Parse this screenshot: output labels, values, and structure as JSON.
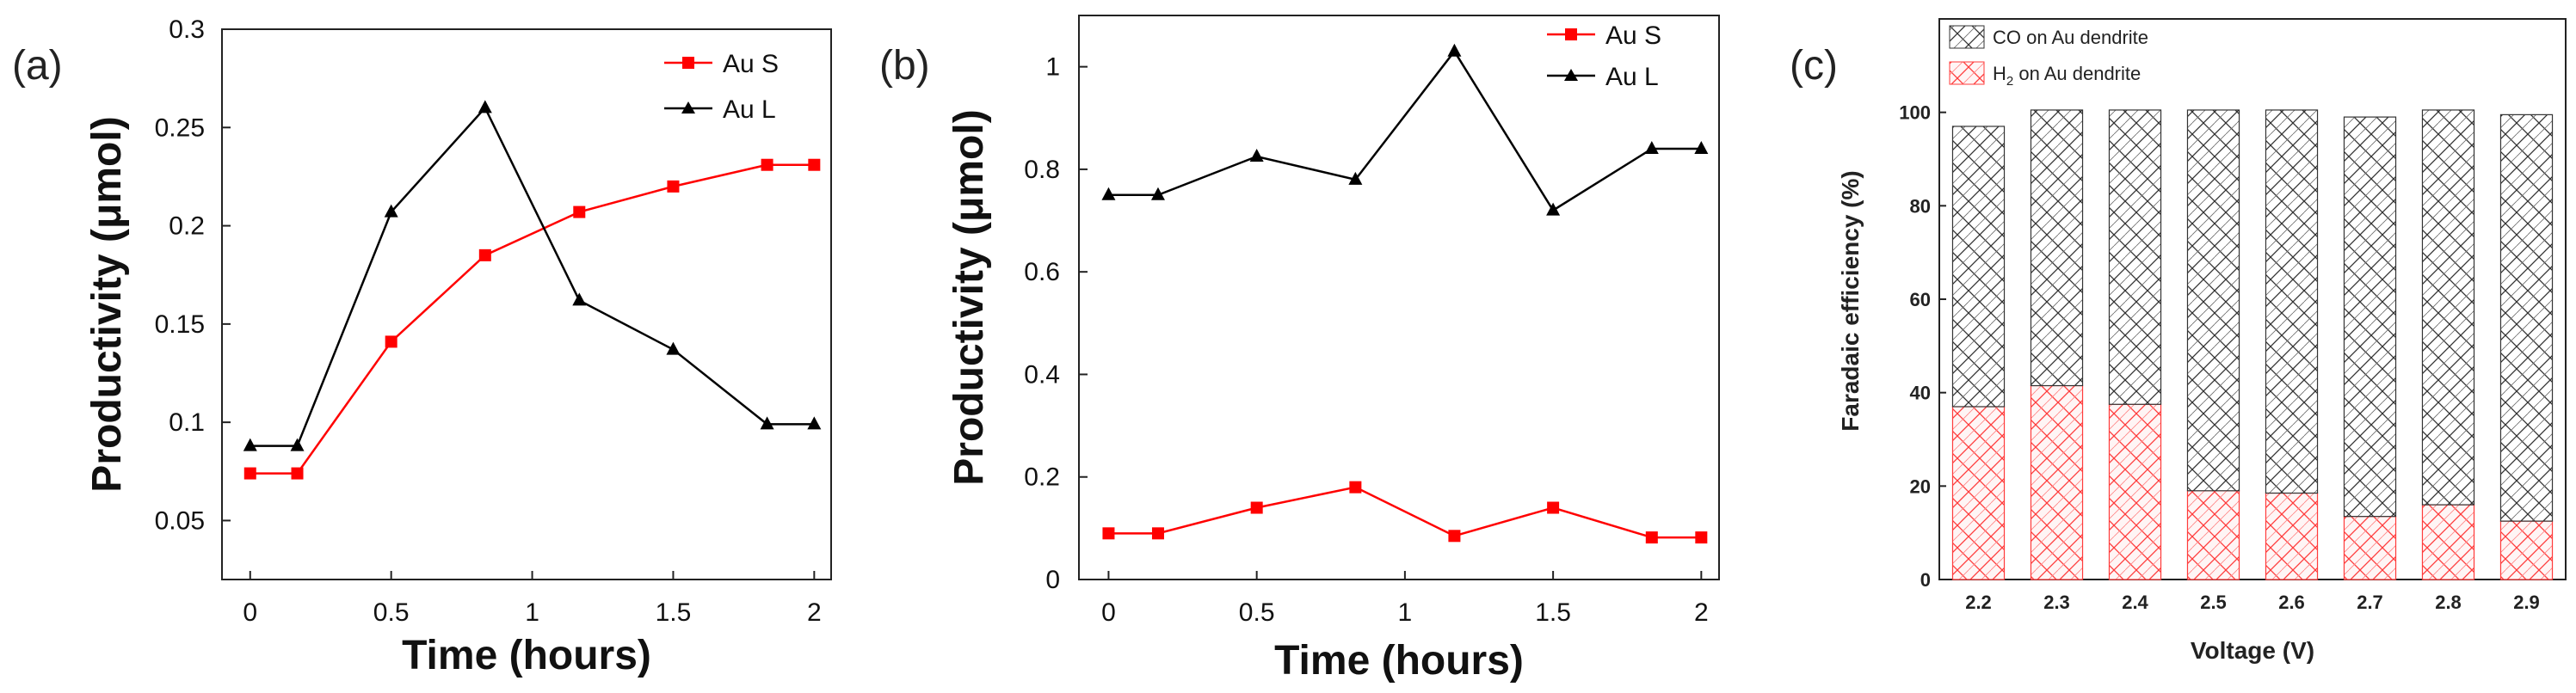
{
  "chart_data": [
    {
      "panel": "(a)",
      "type": "line",
      "xlabel": "Time (hours)",
      "ylabel": "Productivity (μmol)",
      "xlim": [
        -0.1,
        2.06
      ],
      "ylim": [
        0.02,
        0.3
      ],
      "xticks": [
        0,
        0.5,
        1,
        1.5,
        2
      ],
      "xtick_labels": [
        "0",
        "0.5",
        "1",
        "1.5",
        "2"
      ],
      "yticks": [
        0.05,
        0.1,
        0.15,
        0.2,
        0.25,
        0.3
      ],
      "ytick_labels": [
        "0.05",
        "0.1",
        "0.15",
        "0.2",
        "0.25",
        "0.3"
      ],
      "x": [
        0,
        0.167,
        0.5,
        0.833,
        1.167,
        1.5,
        1.833,
        2
      ],
      "series": [
        {
          "name": "Au S",
          "color": "#ff0000",
          "marker": "square",
          "values": [
            0.074,
            0.074,
            0.141,
            0.185,
            0.207,
            0.22,
            0.231,
            0.231
          ]
        },
        {
          "name": "Au L",
          "color": "#000000",
          "marker": "triangle",
          "values": [
            0.088,
            0.088,
            0.207,
            0.26,
            0.162,
            0.137,
            0.099,
            0.099
          ]
        }
      ],
      "legend_position": "top-right"
    },
    {
      "panel": "(b)",
      "type": "line",
      "xlabel": "Time (hours)",
      "ylabel": "Productivity (μmol)",
      "xlim": [
        -0.1,
        2.06
      ],
      "ylim": [
        0,
        1.1
      ],
      "xticks": [
        0,
        0.5,
        1,
        1.5,
        2
      ],
      "xtick_labels": [
        "0",
        "0.5",
        "1",
        "1.5",
        "2"
      ],
      "yticks": [
        0,
        0.2,
        0.4,
        0.6,
        0.8,
        1
      ],
      "ytick_labels": [
        "0",
        "0.2",
        "0.4",
        "0.6",
        "0.8",
        "1"
      ],
      "x": [
        0,
        0.167,
        0.5,
        0.833,
        1.167,
        1.5,
        1.833,
        2
      ],
      "series": [
        {
          "name": "Au S",
          "color": "#ff0000",
          "marker": "square",
          "values": [
            0.09,
            0.09,
            0.14,
            0.18,
            0.085,
            0.14,
            0.082,
            0.082
          ]
        },
        {
          "name": "Au L",
          "color": "#000000",
          "marker": "triangle",
          "values": [
            0.75,
            0.75,
            0.825,
            0.78,
            1.03,
            0.72,
            0.84,
            0.84
          ]
        }
      ],
      "legend_position": "top-right"
    },
    {
      "panel": "(c)",
      "type": "bar",
      "stacked": true,
      "xlabel": "Voltage (V)",
      "ylabel": "Faradaic efficiency (%)",
      "ylim": [
        0,
        120
      ],
      "yticks": [
        0,
        20,
        40,
        60,
        80,
        100
      ],
      "ytick_labels": [
        "0",
        "20",
        "40",
        "60",
        "80",
        "100"
      ],
      "categories": [
        "2.2",
        "2.3",
        "2.4",
        "2.5",
        "2.6",
        "2.7",
        "2.8",
        "2.9"
      ],
      "series": [
        {
          "name": "H2 on Au dendrite",
          "color": "#ff3333",
          "values": [
            37,
            41.5,
            37.5,
            19,
            18.5,
            13.5,
            16,
            12.5
          ]
        },
        {
          "name": "CO on Au dendrite",
          "color": "#222222",
          "values": [
            60,
            59,
            63,
            81.5,
            82,
            85.5,
            84.5,
            87
          ]
        }
      ],
      "legend": {
        "co": "CO on Au dendrite",
        "h2_prefix": "H",
        "h2_sub": "2",
        "h2_suffix": " on Au dendrite"
      },
      "legend_position": "top-left"
    }
  ]
}
